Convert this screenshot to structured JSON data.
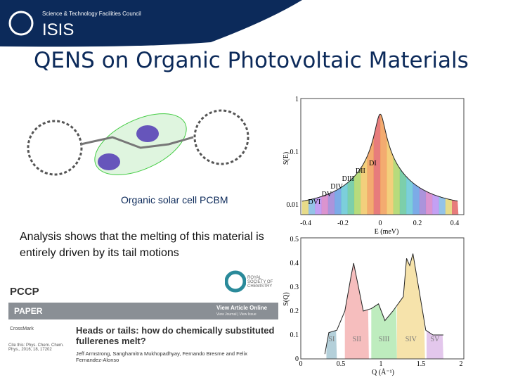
{
  "header": {
    "organisation": "Science & Technology Facilities Council",
    "logo": "ISIS"
  },
  "title": "QENS on Organic Photovoltaic Materials",
  "molecule_caption": "Organic solar cell PCBM",
  "analysis_text": "Analysis shows that the melting of this material is entirely driven by its tail motions",
  "paper": {
    "journal": "PCCP",
    "society": "ROYAL SOCIETY OF CHEMISTRY",
    "section": "PAPER",
    "link": "View Article Online",
    "link_sub": "View Journal | View Issue",
    "crossmark": "CrossMark",
    "cite": "Cite this: Phys. Chem. Chem. Phys., 2016, 18, 17202",
    "title": "Heads or tails: how do chemically substituted fullerenes melt?",
    "authors": "Jeff Armstrong, Sanghamitra Mukhopadhyay, Fernando Bresme and Felix Fernandez-Alonso"
  },
  "plot_energy": {
    "ylabel": "S(E)",
    "xlabel": "E (meV)",
    "yticks": [
      "1",
      "0.1",
      "0.01"
    ],
    "xticks": [
      "-0.4",
      "-0.2",
      "0",
      "0.2",
      "0.4"
    ],
    "bands": [
      "DI",
      "DII",
      "DIII",
      "DIV",
      "DV",
      "DVI"
    ]
  },
  "plot_q": {
    "ylabel": "S(Q)",
    "xlabel": "Q (Å⁻¹)",
    "yticks": [
      "0",
      "0.1",
      "0.2",
      "0.3",
      "0.4",
      "0.5"
    ],
    "xticks": [
      "0",
      "0.5",
      "1",
      "1.5",
      "2"
    ],
    "regions": [
      "SI",
      "SII",
      "SIII",
      "SIV",
      "SV"
    ]
  }
}
